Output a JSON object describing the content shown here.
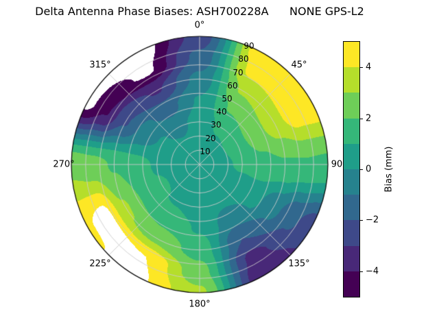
{
  "title": "Delta Antenna Phase Biases: ASH700228A      NONE GPS-L2",
  "chart_data": {
    "type": "heatmap",
    "projection": "polar",
    "title": "Delta Antenna Phase Biases: ASH700228A      NONE GPS-L2",
    "azimuth_tick_labels": [
      "0°",
      "45°",
      "90",
      "135°",
      "180°",
      "225°",
      "270°",
      "315°"
    ],
    "radial_tick_labels": [
      "90",
      "80",
      "70",
      "60",
      "50",
      "40",
      "30",
      "20",
      "10"
    ],
    "rlabel_angle_deg": 22.5,
    "levels": [
      -5,
      -4,
      -3,
      -2,
      -1,
      0,
      1,
      2,
      3,
      4,
      5
    ],
    "band_colors": [
      "#440154",
      "#482878",
      "#3e4989",
      "#31688e",
      "#26828e",
      "#1f9e89",
      "#35b779",
      "#6ece58",
      "#b5de2b",
      "#fde725"
    ],
    "out_of_range_color": "#ffffff",
    "grid_color": "#cccccc",
    "colorbar": {
      "label": "Bias (mm)",
      "ticks": [
        "4",
        "2",
        "0",
        "−2",
        "−4"
      ],
      "tick_values": [
        4,
        2,
        0,
        -2,
        -4
      ],
      "min": -5,
      "max": 5
    },
    "grid": {
      "azimuth_deg": [
        0,
        30,
        60,
        90,
        120,
        150,
        180,
        210,
        240,
        270,
        300,
        330,
        360
      ],
      "zenith_deg": [
        0,
        15,
        30,
        45,
        60,
        75,
        90
      ],
      "values": [
        [
          0.5,
          0.5,
          0.5,
          0.5,
          0.5,
          0.5,
          0.5,
          0.5,
          0.5,
          0.5,
          0.5,
          0.5,
          0.5
        ],
        [
          0.6,
          0.7,
          0.8,
          0.7,
          0.6,
          0.5,
          0.5,
          0.6,
          0.7,
          0.6,
          0.4,
          0.3,
          0.6
        ],
        [
          0.4,
          1.2,
          1.6,
          1.2,
          0.5,
          0.2,
          0.5,
          0.9,
          1.1,
          0.9,
          0.1,
          -0.3,
          0.4
        ],
        [
          0.1,
          2.1,
          2.6,
          1.7,
          0.3,
          -0.6,
          0.9,
          1.6,
          1.9,
          1.4,
          -0.7,
          -1.4,
          0.1
        ],
        [
          -0.7,
          3.1,
          3.6,
          1.9,
          -0.7,
          -2.0,
          1.6,
          2.7,
          3.1,
          1.9,
          -2.1,
          -3.1,
          -0.7
        ],
        [
          -1.7,
          4.3,
          4.6,
          1.9,
          -1.8,
          -3.3,
          2.4,
          5.0,
          5.4,
          2.4,
          -4.1,
          -5.2,
          -1.7
        ],
        [
          -2.6,
          4.9,
          4.8,
          1.8,
          -2.6,
          -3.9,
          3.2,
          5.2,
          4.9,
          2.7,
          -5.4,
          -5.7,
          -2.6
        ]
      ]
    }
  }
}
